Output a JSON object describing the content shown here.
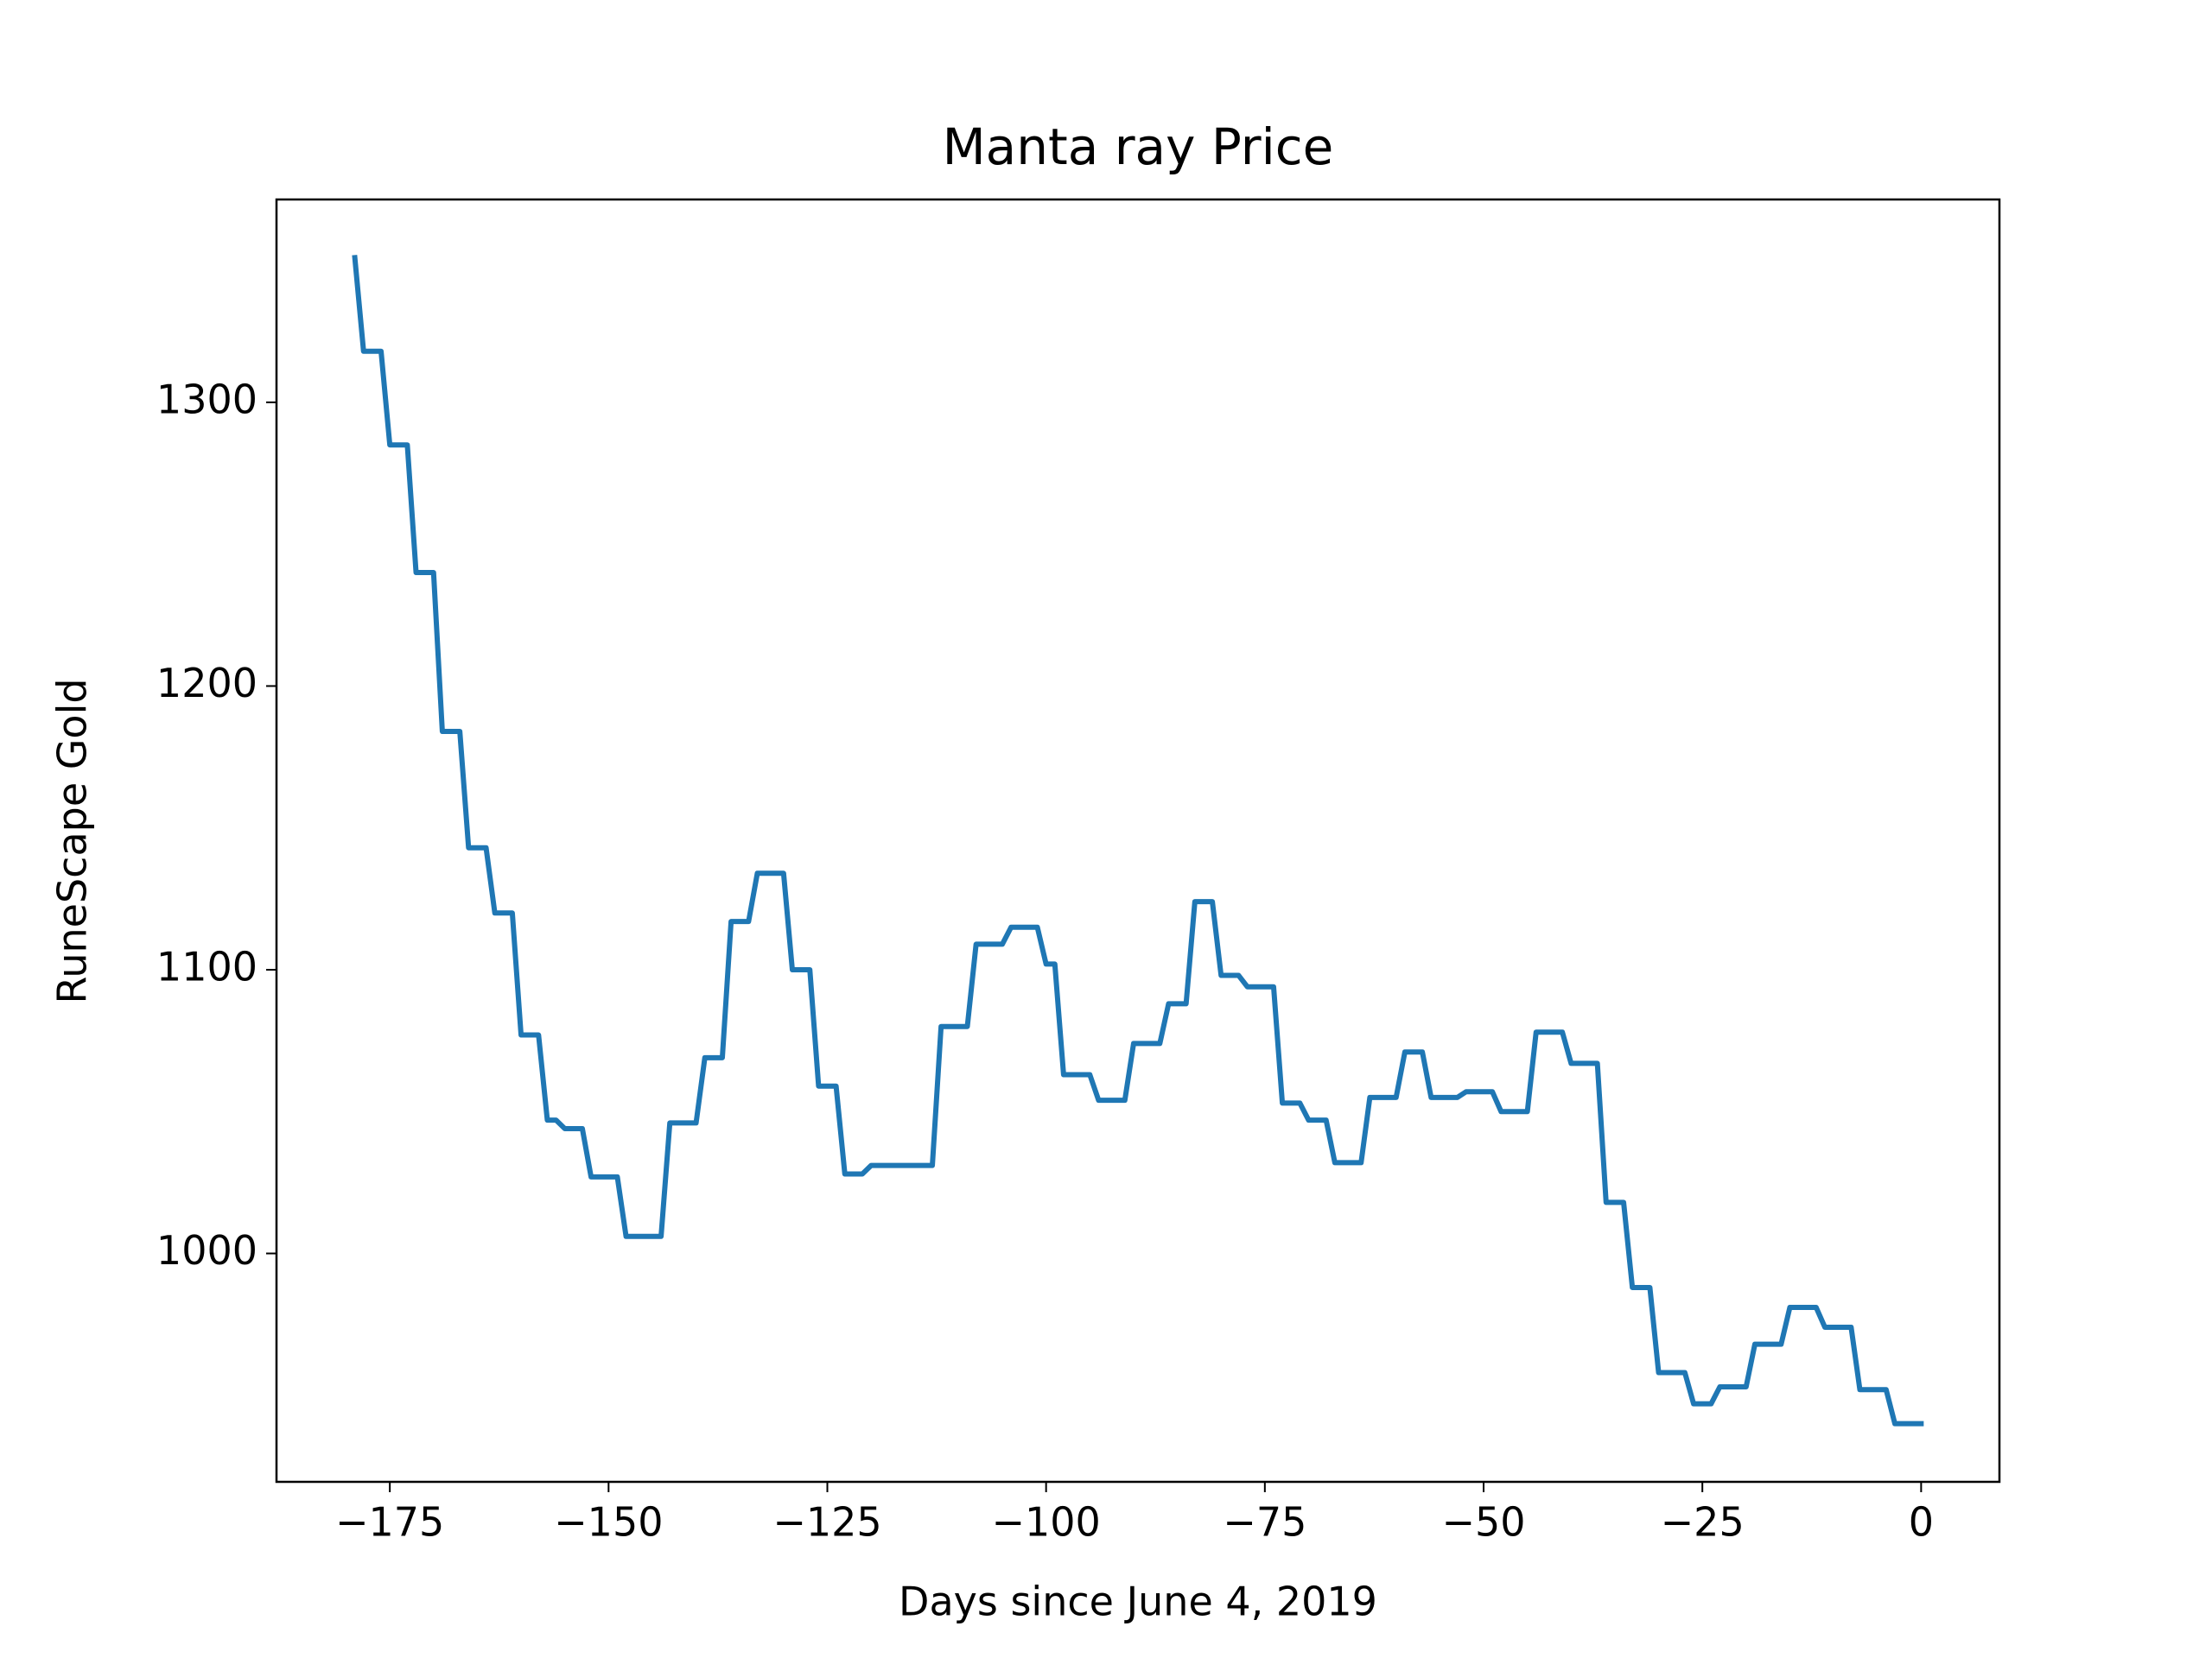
{
  "chart_data": {
    "type": "line",
    "title": "Manta ray Price",
    "x_label": "Days since June 4, 2019",
    "y_label": "RuneScape Gold",
    "x": [
      -179,
      -178,
      -176,
      -175,
      -173,
      -172,
      -170,
      -169,
      -167,
      -166,
      -164,
      -163,
      -161,
      -160,
      -158,
      -157,
      -156,
      -155,
      -153,
      -152,
      -149,
      -148,
      -144,
      -143,
      -140,
      -139,
      -137,
      -136,
      -134,
      -133,
      -130,
      -129,
      -127,
      -126,
      -124,
      -123,
      -121,
      -120,
      -113,
      -112,
      -109,
      -108,
      -105,
      -104,
      -101,
      -100,
      -99,
      -98,
      -95,
      -94,
      -91,
      -90,
      -87,
      -86,
      -84,
      -83,
      -81,
      -80,
      -78,
      -77,
      -74,
      -73,
      -71,
      -70,
      -68,
      -67,
      -64,
      -63,
      -60,
      -59,
      -57,
      -56,
      -53,
      -52,
      -49,
      -48,
      -45,
      -44,
      -41,
      -40,
      -37,
      -36,
      -34,
      -33,
      -31,
      -30,
      -27,
      -26,
      -24,
      -23,
      -20,
      -19,
      -16,
      -15,
      -12,
      -11,
      -8,
      -7,
      -4,
      -3,
      0
    ],
    "series": [
      {
        "name": "Manta ray",
        "color": "#1f77b4",
        "values": [
          1351,
          1318,
          1318,
          1285,
          1285,
          1240,
          1240,
          1184,
          1184,
          1143,
          1143,
          1120,
          1120,
          1077,
          1077,
          1047,
          1047,
          1044,
          1044,
          1027,
          1027,
          1006,
          1006,
          1046,
          1046,
          1069,
          1069,
          1117,
          1117,
          1134,
          1134,
          1100,
          1100,
          1059,
          1059,
          1028,
          1028,
          1031,
          1031,
          1080,
          1080,
          1109,
          1109,
          1115,
          1115,
          1102,
          1102,
          1063,
          1063,
          1054,
          1054,
          1074,
          1074,
          1088,
          1088,
          1124,
          1124,
          1098,
          1098,
          1094,
          1094,
          1053,
          1053,
          1047,
          1047,
          1032,
          1032,
          1055,
          1055,
          1071,
          1071,
          1055,
          1055,
          1057,
          1057,
          1050,
          1050,
          1078,
          1078,
          1067,
          1067,
          1018,
          1018,
          988,
          988,
          958,
          958,
          947,
          947,
          953,
          953,
          968,
          968,
          981,
          981,
          974,
          974,
          952,
          952,
          940,
          940
        ]
      }
    ],
    "xlim": [
      -187.95,
      8.95
    ],
    "xticks": [
      {
        "value": -175,
        "label": "−175"
      },
      {
        "value": -150,
        "label": "−150"
      },
      {
        "value": -125,
        "label": "−125"
      },
      {
        "value": -100,
        "label": "−100"
      },
      {
        "value": -75,
        "label": "−75"
      },
      {
        "value": -50,
        "label": "−50"
      },
      {
        "value": -25,
        "label": "−25"
      },
      0
    ],
    "ylim": [
      919.5,
      1371.5
    ],
    "yticks": [
      1000,
      1100,
      1200,
      1300
    ]
  }
}
